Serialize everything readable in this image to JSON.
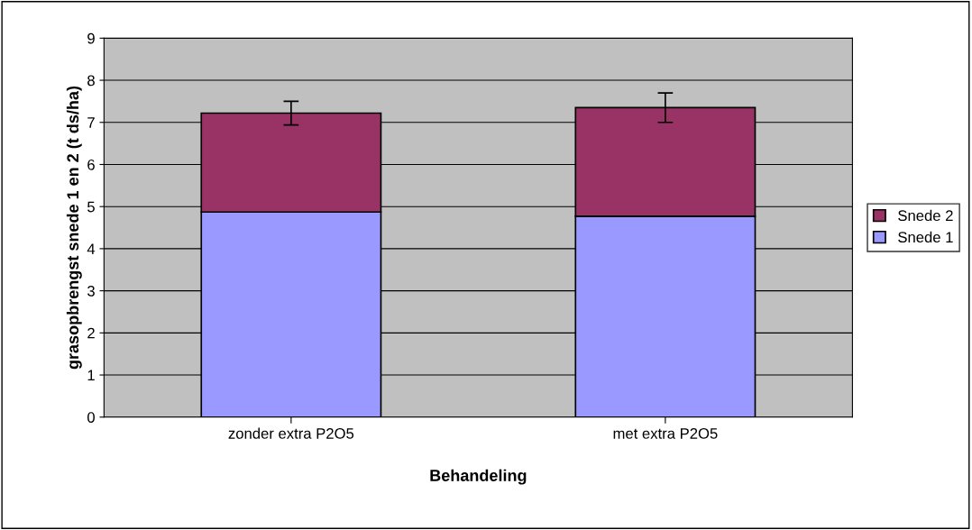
{
  "chart_data": {
    "type": "bar",
    "stacked": true,
    "xlabel": "Behandeling",
    "ylabel": "grasopbrengst snede 1 en 2 (t ds/ha)",
    "categories": [
      "zonder extra P2O5",
      "met extra P2O5"
    ],
    "series": [
      {
        "name": "Snede 1",
        "color": "#9999ff",
        "values": [
          4.87,
          4.77
        ]
      },
      {
        "name": "Snede 2",
        "color": "#993366",
        "values": [
          2.35,
          2.58
        ],
        "errors": [
          0.28,
          0.35
        ]
      }
    ],
    "ylim": [
      0,
      9
    ],
    "yticks": [
      0,
      1,
      2,
      3,
      4,
      5,
      6,
      7,
      8,
      9
    ],
    "grid": "y",
    "legend": "right"
  }
}
